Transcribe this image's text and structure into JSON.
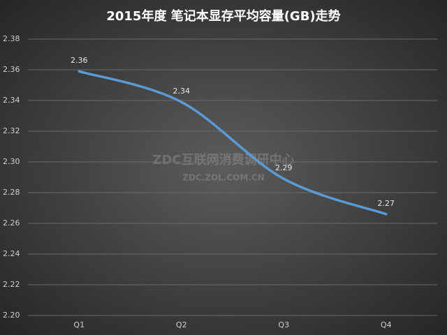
{
  "chart_data": {
    "type": "line",
    "title": "2015年度 笔记本显存平均容量(GB)走势",
    "categories": [
      "Q1",
      "Q2",
      "Q3",
      "Q4"
    ],
    "series": [
      {
        "name": "平均容量",
        "color": "#5b9bd5",
        "values": [
          2.359,
          2.339,
          2.289,
          2.266
        ],
        "value_labels": [
          "2.36",
          "2.34",
          "2.29",
          "2.27"
        ]
      }
    ],
    "ylim": [
      2.2,
      2.38
    ],
    "yticks": [
      {
        "value": 2.2,
        "label": "2.20"
      },
      {
        "value": 2.22,
        "label": "2.22"
      },
      {
        "value": 2.24,
        "label": "2.24"
      },
      {
        "value": 2.26,
        "label": "2.26"
      },
      {
        "value": 2.28,
        "label": "2.28"
      },
      {
        "value": 2.3,
        "label": "2.30"
      },
      {
        "value": 2.32,
        "label": "2.32"
      },
      {
        "value": 2.34,
        "label": "2.34"
      },
      {
        "value": 2.36,
        "label": "2.36"
      },
      {
        "value": 2.38,
        "label": "2.38"
      }
    ],
    "grid": true,
    "watermark": [
      "ZDC互联网消费调研中心",
      "ZDC.ZOL.COM.CN"
    ]
  }
}
